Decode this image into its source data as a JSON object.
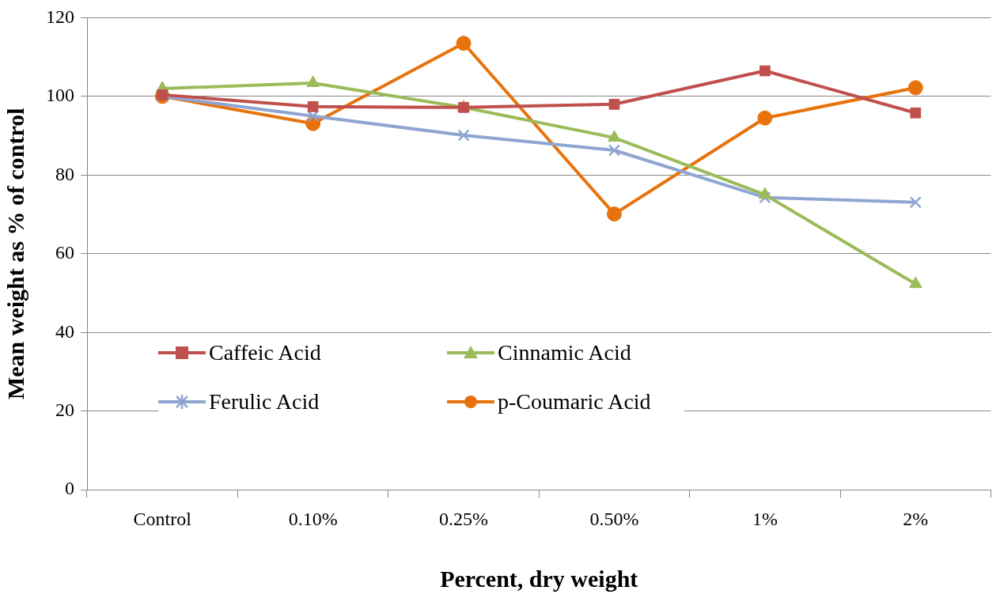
{
  "chart_data": {
    "type": "line",
    "xlabel": "Percent, dry weight",
    "ylabel": "Mean weight as % of control",
    "categories": [
      "Control",
      "0.10%",
      "0.25%",
      "0.50%",
      "1%",
      "2%"
    ],
    "series": [
      {
        "name": "Caffeic Acid",
        "color": "#c0504d",
        "marker": "square",
        "values": [
          100.4,
          97.4,
          97.2,
          98.0,
          106.5,
          95.8
        ]
      },
      {
        "name": "Cinnamic Acid",
        "color": "#9bbb59",
        "marker": "triangle",
        "values": [
          102.0,
          103.4,
          97.2,
          89.5,
          75.0,
          52.3
        ]
      },
      {
        "name": "Ferulic Acid",
        "color": "#8ea5d2",
        "marker": "cross",
        "values": [
          100.0,
          95.0,
          90.1,
          86.3,
          74.3,
          73.1
        ]
      },
      {
        "name": "p-Coumaric Acid",
        "color": "#e8720c",
        "marker": "circle",
        "values": [
          100.0,
          93.1,
          113.5,
          70.1,
          94.5,
          102.2
        ]
      }
    ],
    "ylim": [
      0,
      120
    ],
    "yticks": [
      0,
      20,
      40,
      60,
      80,
      100,
      120
    ],
    "grid": "y",
    "legend": "bottom left",
    "line_style": "solid"
  }
}
